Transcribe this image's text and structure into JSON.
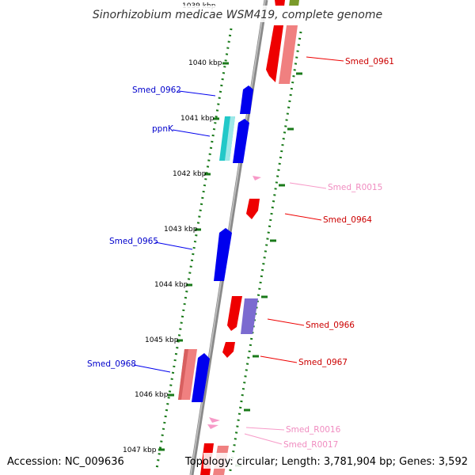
{
  "title": "Sinorhizobium medicae WSM419, complete genome",
  "footer": {
    "accession": "Accession: NC_009636",
    "topology": "Topology: circular; Length: 3,781,904 bp; Genes: 3,592"
  },
  "colors": {
    "backbone": "#8a8a8a",
    "tick": "#1a7a1a",
    "forward_gene": "#0000ee",
    "forward_gene_light": "#7b6bd0",
    "forward_gene_cyan": "#22c8c8",
    "reverse_gene": "#ee0000",
    "reverse_gene_light": "#f08080",
    "rna_gene": "#f79ac8",
    "olive_gene": "#7a9a2a"
  },
  "ticks": [
    "1039 kbp",
    "1040 kbp",
    "1041 kbp",
    "1042 kbp",
    "1043 kbp",
    "1044 kbp",
    "1045 kbp",
    "1046 kbp",
    "1047 kbp"
  ],
  "genes": {
    "smed_0961": "Smed_0961",
    "smed_0962": "Smed_0962",
    "ppnk": "ppnK",
    "smed_r0015": "Smed_R0015",
    "smed_0964": "Smed_0964",
    "smed_0965": "Smed_0965",
    "smed_0966": "Smed_0966",
    "smed_0967": "Smed_0967",
    "smed_0968": "Smed_0968",
    "smed_r0016": "Smed_R0016",
    "smed_r0017": "Smed_R0017"
  }
}
